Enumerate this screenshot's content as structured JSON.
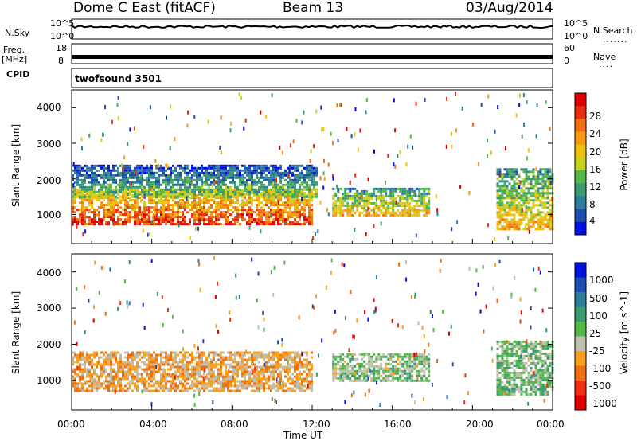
{
  "header": {
    "station": "Dome C East (fitACF)",
    "beam": "Beam 13",
    "date": "03/Aug/2014"
  },
  "params": {
    "nsky_label": "N.Sky",
    "nsearch_label": "N.Search",
    "nsky_ticks": [
      "10^5",
      "10^0"
    ],
    "nsearch_ticks": [
      "10^5",
      "10^0"
    ],
    "freq_label": "Freq.",
    "freq_unit": "[MHz]",
    "freq_ticks": [
      "18",
      "8"
    ],
    "nave_label": "Nave",
    "nave_ticks": [
      "60",
      "0"
    ],
    "cpid_label": "CPID",
    "cpid_value": "twofsound 3501"
  },
  "x_axis": {
    "title": "Time UT",
    "ticks": [
      "00:00",
      "04:00",
      "08:00",
      "12:00",
      "16:00",
      "20:00",
      "00:00"
    ]
  },
  "power_panel": {
    "ylabel": "Slant Range [km]",
    "yticks": [
      "4000",
      "3000",
      "2000",
      "1000"
    ],
    "colorbar_label": "Power [dB]",
    "colorbar_ticks": [
      "28",
      "24",
      "20",
      "16",
      "12",
      "8",
      "4"
    ]
  },
  "velocity_panel": {
    "ylabel": "Slant Range [km]",
    "yticks": [
      "4000",
      "3000",
      "2000",
      "1000"
    ],
    "colorbar_label": "Velocity [m s^-1]",
    "colorbar_ticks": [
      "1000",
      "500",
      "100",
      "25",
      "-25",
      "-100",
      "-500",
      "-1000"
    ]
  },
  "chart_data": [
    {
      "type": "heatmap",
      "title": "",
      "xlabel": "Time UT",
      "ylabel": "Slant Range [km]",
      "xlim": [
        0,
        24
      ],
      "ylim": [
        180,
        4500
      ],
      "colorbar": "Power [dB]",
      "clim": [
        0,
        30
      ],
      "colors": [
        "#0010e0",
        "#1d4fb0",
        "#2e7d9a",
        "#3c9b6e",
        "#55b84a",
        "#c8d020",
        "#f0c010",
        "#f59a10",
        "#f07010",
        "#e83010",
        "#dd0000"
      ],
      "regions": [
        {
          "t": [
            0.0,
            12.0
          ],
          "range": [
            700,
            1700
          ],
          "power": 28
        },
        {
          "t": [
            0.0,
            12.2
          ],
          "range": [
            1500,
            2400
          ],
          "power": 14
        },
        {
          "t": [
            13.0,
            17.8
          ],
          "range": [
            1000,
            1750
          ],
          "power": 20
        },
        {
          "t": [
            21.2,
            24.0
          ],
          "range": [
            600,
            2300
          ],
          "power": 20
        }
      ]
    },
    {
      "type": "heatmap",
      "title": "",
      "xlabel": "Time UT",
      "ylabel": "Slant Range [km]",
      "xlim": [
        0,
        24
      ],
      "ylim": [
        180,
        4500
      ],
      "colorbar": "Velocity [m s^-1]",
      "clim": [
        -1000,
        1000
      ],
      "colors": [
        "#dd0000",
        "#f03010",
        "#f07010",
        "#f7a020",
        "#c0c0b0",
        "#55b84a",
        "#3c9b6e",
        "#2e7d9a",
        "#1d4fb0",
        "#0010e0"
      ],
      "regions": [
        {
          "t": [
            0.0,
            12.0
          ],
          "range": [
            700,
            1800
          ],
          "velocity": -300
        },
        {
          "t": [
            13.0,
            17.8
          ],
          "range": [
            1000,
            1750
          ],
          "velocity": 50
        },
        {
          "t": [
            21.2,
            24.0
          ],
          "range": [
            600,
            2100
          ],
          "velocity": 100
        }
      ]
    }
  ]
}
